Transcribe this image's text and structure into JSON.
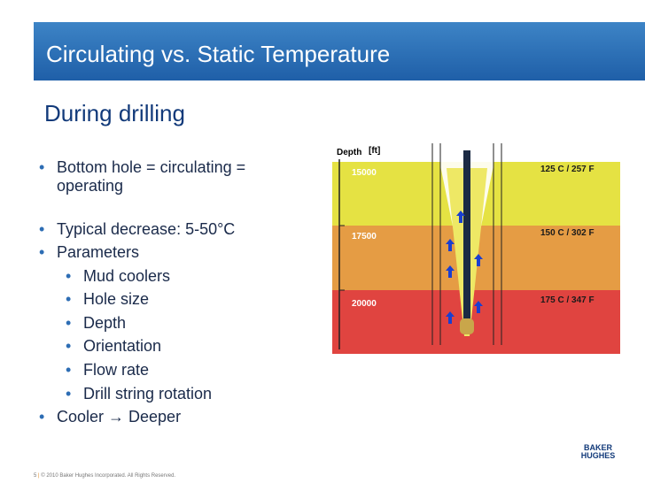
{
  "header": {
    "title": "Circulating vs. Static Temperature"
  },
  "subtitle": "During drilling",
  "bullets": [
    {
      "level": 1,
      "text": "Bottom hole = circulating = operating"
    },
    {
      "level": 1,
      "text": "Typical decrease:  5-50°C"
    },
    {
      "level": 1,
      "text": "Parameters"
    },
    {
      "level": 2,
      "text": "Mud coolers"
    },
    {
      "level": 2,
      "text": "Hole size"
    },
    {
      "level": 2,
      "text": "Depth"
    },
    {
      "level": 2,
      "text": "Orientation"
    },
    {
      "level": 2,
      "text": "Flow rate"
    },
    {
      "level": 2,
      "text": "Drill string rotation"
    },
    {
      "level": 1,
      "text": "Cooler → Deeper"
    }
  ],
  "diagram": {
    "depth_label": "Depth",
    "depth_unit": "[ft]",
    "layers": [
      {
        "depth": "15000",
        "temperature": "125 C / 257 F"
      },
      {
        "depth": "17500",
        "temperature": "150 C / 302 F"
      },
      {
        "depth": "20000",
        "temperature": "175 C / 347 F"
      }
    ]
  },
  "footer": {
    "page": "5",
    "copyright": "© 2010 Baker Hughes Incorporated. All Rights Reserved.",
    "logo": "BAKER HUGHES"
  }
}
